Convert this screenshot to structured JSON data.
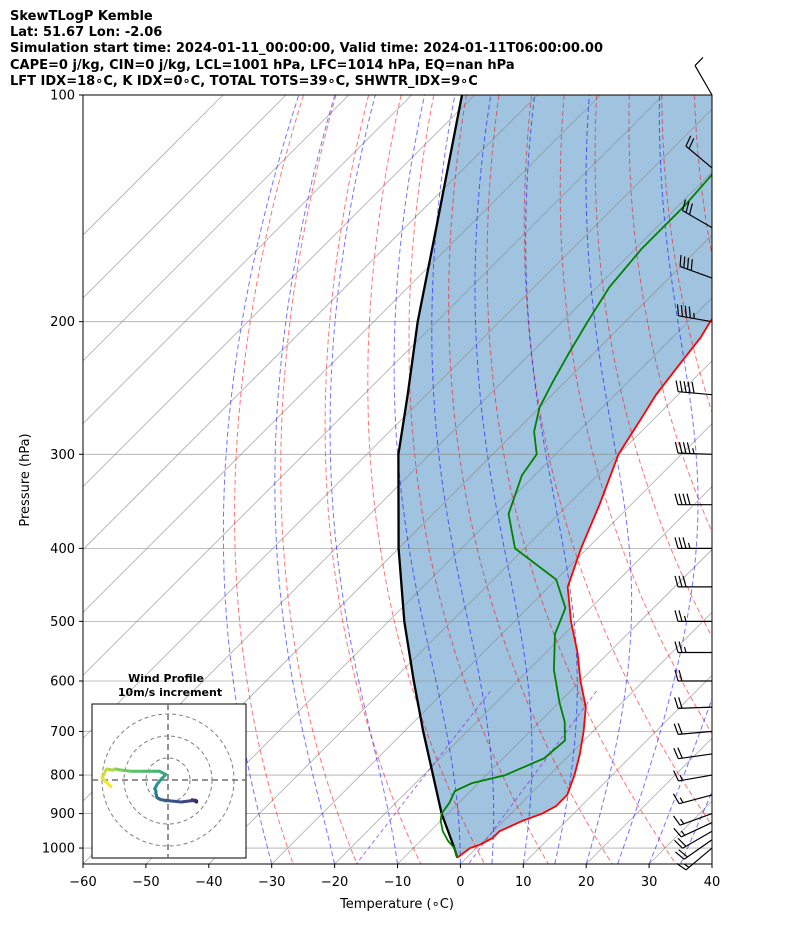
{
  "header": {
    "line1": "SkewTLogP Kemble",
    "line2": "Lat: 51.67   Lon: -2.06",
    "line3": "Simulation start time: 2024-01-11_00:00:00, Valid time: 2024-01-11T06:00:00.00",
    "line4": "CAPE=0 j/kg, CIN=0 j/kg, LCL=1001 hPa, LFC=1014 hPa, EQ=nan hPa",
    "line5": "LFT IDX=18∘C, K IDX=0∘C, TOTAL TOTS=39∘C, SHWTR_IDX=9∘C"
  },
  "chart_data": {
    "type": "line",
    "subtype": "skew-T log-P",
    "xlabel": "Temperature (∘C)",
    "ylabel": "Pressure (hPa)",
    "xlim": [
      -60,
      40
    ],
    "ylim": [
      1050,
      100
    ],
    "yscale": "log",
    "x_ticks": [
      "−60",
      "−50",
      "−40",
      "−30",
      "−20",
      "−10",
      "0",
      "10",
      "20",
      "30",
      "40"
    ],
    "y_ticks": [
      100,
      200,
      300,
      400,
      500,
      600,
      700,
      800,
      900,
      1000
    ],
    "grid": true,
    "colors": {
      "temperature": "#ff0000",
      "dewpoint": "#008000",
      "parcel": "#000000",
      "cape_fill": "#a0c4df",
      "dry_adiabat": "#ff0000",
      "moist_adiabat": "#0000ff",
      "mixing_ratio": "#8a2be2",
      "isotherm": "#888888"
    },
    "temperature": {
      "pressure": [
        1030,
        1000,
        990,
        970,
        950,
        920,
        900,
        880,
        850,
        800,
        750,
        700,
        650,
        600,
        550,
        500,
        450,
        400,
        350,
        300,
        270,
        250,
        230,
        210,
        200,
        180,
        160,
        150,
        140,
        130,
        120,
        110,
        100
      ],
      "temp": [
        -1.5,
        -1,
        0,
        1,
        1,
        3,
        5,
        6,
        6,
        4,
        1.5,
        -1.5,
        -5,
        -10,
        -15,
        -21,
        -27,
        -31,
        -35,
        -40,
        -42,
        -43.5,
        -44.5,
        -45.5,
        -46.5,
        -48,
        -49.5,
        -51,
        -53,
        -54.5,
        -56.5,
        -59,
        -61
      ]
    },
    "dewpoint": {
      "pressure": [
        1030,
        1000,
        980,
        950,
        920,
        900,
        870,
        840,
        820,
        800,
        760,
        720,
        680,
        640,
        580,
        520,
        480,
        440,
        400,
        360,
        320,
        300,
        280,
        260,
        240,
        220,
        200,
        180,
        160,
        140,
        120,
        100
      ],
      "dewp": [
        -1.5,
        -3.5,
        -5.5,
        -8,
        -10,
        -11,
        -11.5,
        -12.5,
        -11,
        -7,
        -3.5,
        -3,
        -6,
        -10,
        -16,
        -21.5,
        -24,
        -30,
        -41.5,
        -48,
        -52,
        -53,
        -57,
        -60,
        -62,
        -64,
        -66,
        -68,
        -69,
        -69,
        -70,
        -72
      ]
    },
    "parcel": {
      "pressure": [
        1030,
        1000,
        900,
        800,
        700,
        600,
        500,
        400,
        300,
        250,
        200,
        150,
        100
      ],
      "temp": [
        -1.5,
        -3.5,
        -11,
        -18.5,
        -27,
        -36.5,
        -47.5,
        -60,
        -75,
        -83,
        -93,
        -105,
        -122
      ]
    },
    "wind_barbs": {
      "pressure": [
        1000,
        975,
        950,
        925,
        900,
        850,
        800,
        750,
        700,
        650,
        600,
        550,
        500,
        450,
        400,
        350,
        300,
        250,
        200,
        175,
        150,
        125,
        100
      ],
      "speed_kt": [
        15,
        20,
        20,
        15,
        15,
        15,
        15,
        20,
        20,
        20,
        20,
        25,
        25,
        30,
        35,
        40,
        45,
        50,
        45,
        40,
        30,
        20,
        10
      ],
      "direction_deg": [
        230,
        235,
        240,
        245,
        250,
        255,
        260,
        262,
        265,
        268,
        270,
        270,
        270,
        270,
        270,
        270,
        272,
        275,
        280,
        290,
        300,
        310,
        330
      ]
    },
    "hodograph": {
      "title": "Wind Profile",
      "subtitle": "10m/s increment",
      "rings_ms": [
        10,
        20,
        30
      ],
      "u": [
        11,
        13,
        13,
        12,
        12.5,
        10,
        6,
        1,
        -3,
        -5,
        -5.5,
        -5.5,
        -6,
        -5,
        -3,
        -1,
        -4,
        -7,
        -12,
        -17,
        -21,
        -24,
        -25,
        -28,
        -30,
        -28,
        -26
      ],
      "v": [
        -9,
        -9.5,
        -10,
        -9.5,
        -9.2,
        -9.5,
        -10,
        -9.5,
        -9,
        -8,
        -6,
        -5,
        -4,
        -2,
        0.5,
        2.5,
        4,
        4,
        4,
        4,
        4.5,
        5,
        4.5,
        5,
        1,
        -1,
        -3
      ]
    }
  }
}
